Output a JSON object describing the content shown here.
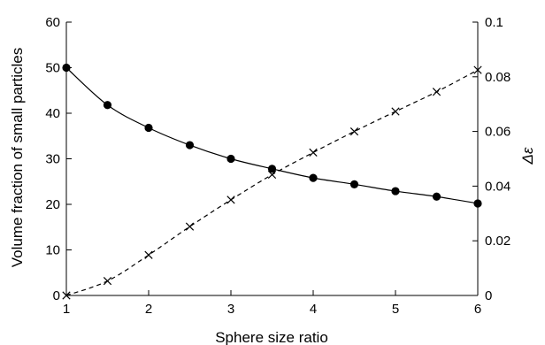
{
  "chart_data": {
    "type": "line",
    "title": "",
    "xlabel": "Sphere size ratio",
    "ylabel": "Volume fraction of small particles",
    "y2label": "Δε",
    "xlim": [
      1,
      6
    ],
    "ylim": [
      0,
      60
    ],
    "y2lim": [
      0,
      0.1
    ],
    "x_ticks": [
      1,
      2,
      3,
      4,
      5,
      6
    ],
    "y_ticks": [
      0,
      10,
      20,
      30,
      40,
      50,
      60
    ],
    "y2_ticks": [
      0,
      0.02,
      0.04,
      0.06,
      0.08,
      0.1
    ],
    "y2_tick_labels": [
      "0",
      "0.02",
      "0.04",
      "0.06",
      "0.08",
      "0.1"
    ],
    "grid": false,
    "series": [
      {
        "axis": "left",
        "line_style": "solid",
        "marker": "filled-circle",
        "color": "#000000",
        "x": [
          1,
          1.5,
          2,
          2.5,
          3,
          3.5,
          4,
          4.5,
          5,
          5.5,
          6
        ],
        "values": [
          50,
          41.8,
          36.8,
          33,
          30,
          27.8,
          25.8,
          24.4,
          22.9,
          21.7,
          20.2
        ]
      },
      {
        "axis": "right",
        "line_style": "dashed",
        "marker": "cross",
        "color": "#000000",
        "x": [
          1,
          1.5,
          2,
          2.5,
          3,
          3.5,
          4,
          4.5,
          5,
          5.5,
          6
        ],
        "values": [
          0,
          0.0053,
          0.0148,
          0.0252,
          0.035,
          0.0442,
          0.0523,
          0.06,
          0.0673,
          0.0745,
          0.0825
        ]
      }
    ]
  }
}
